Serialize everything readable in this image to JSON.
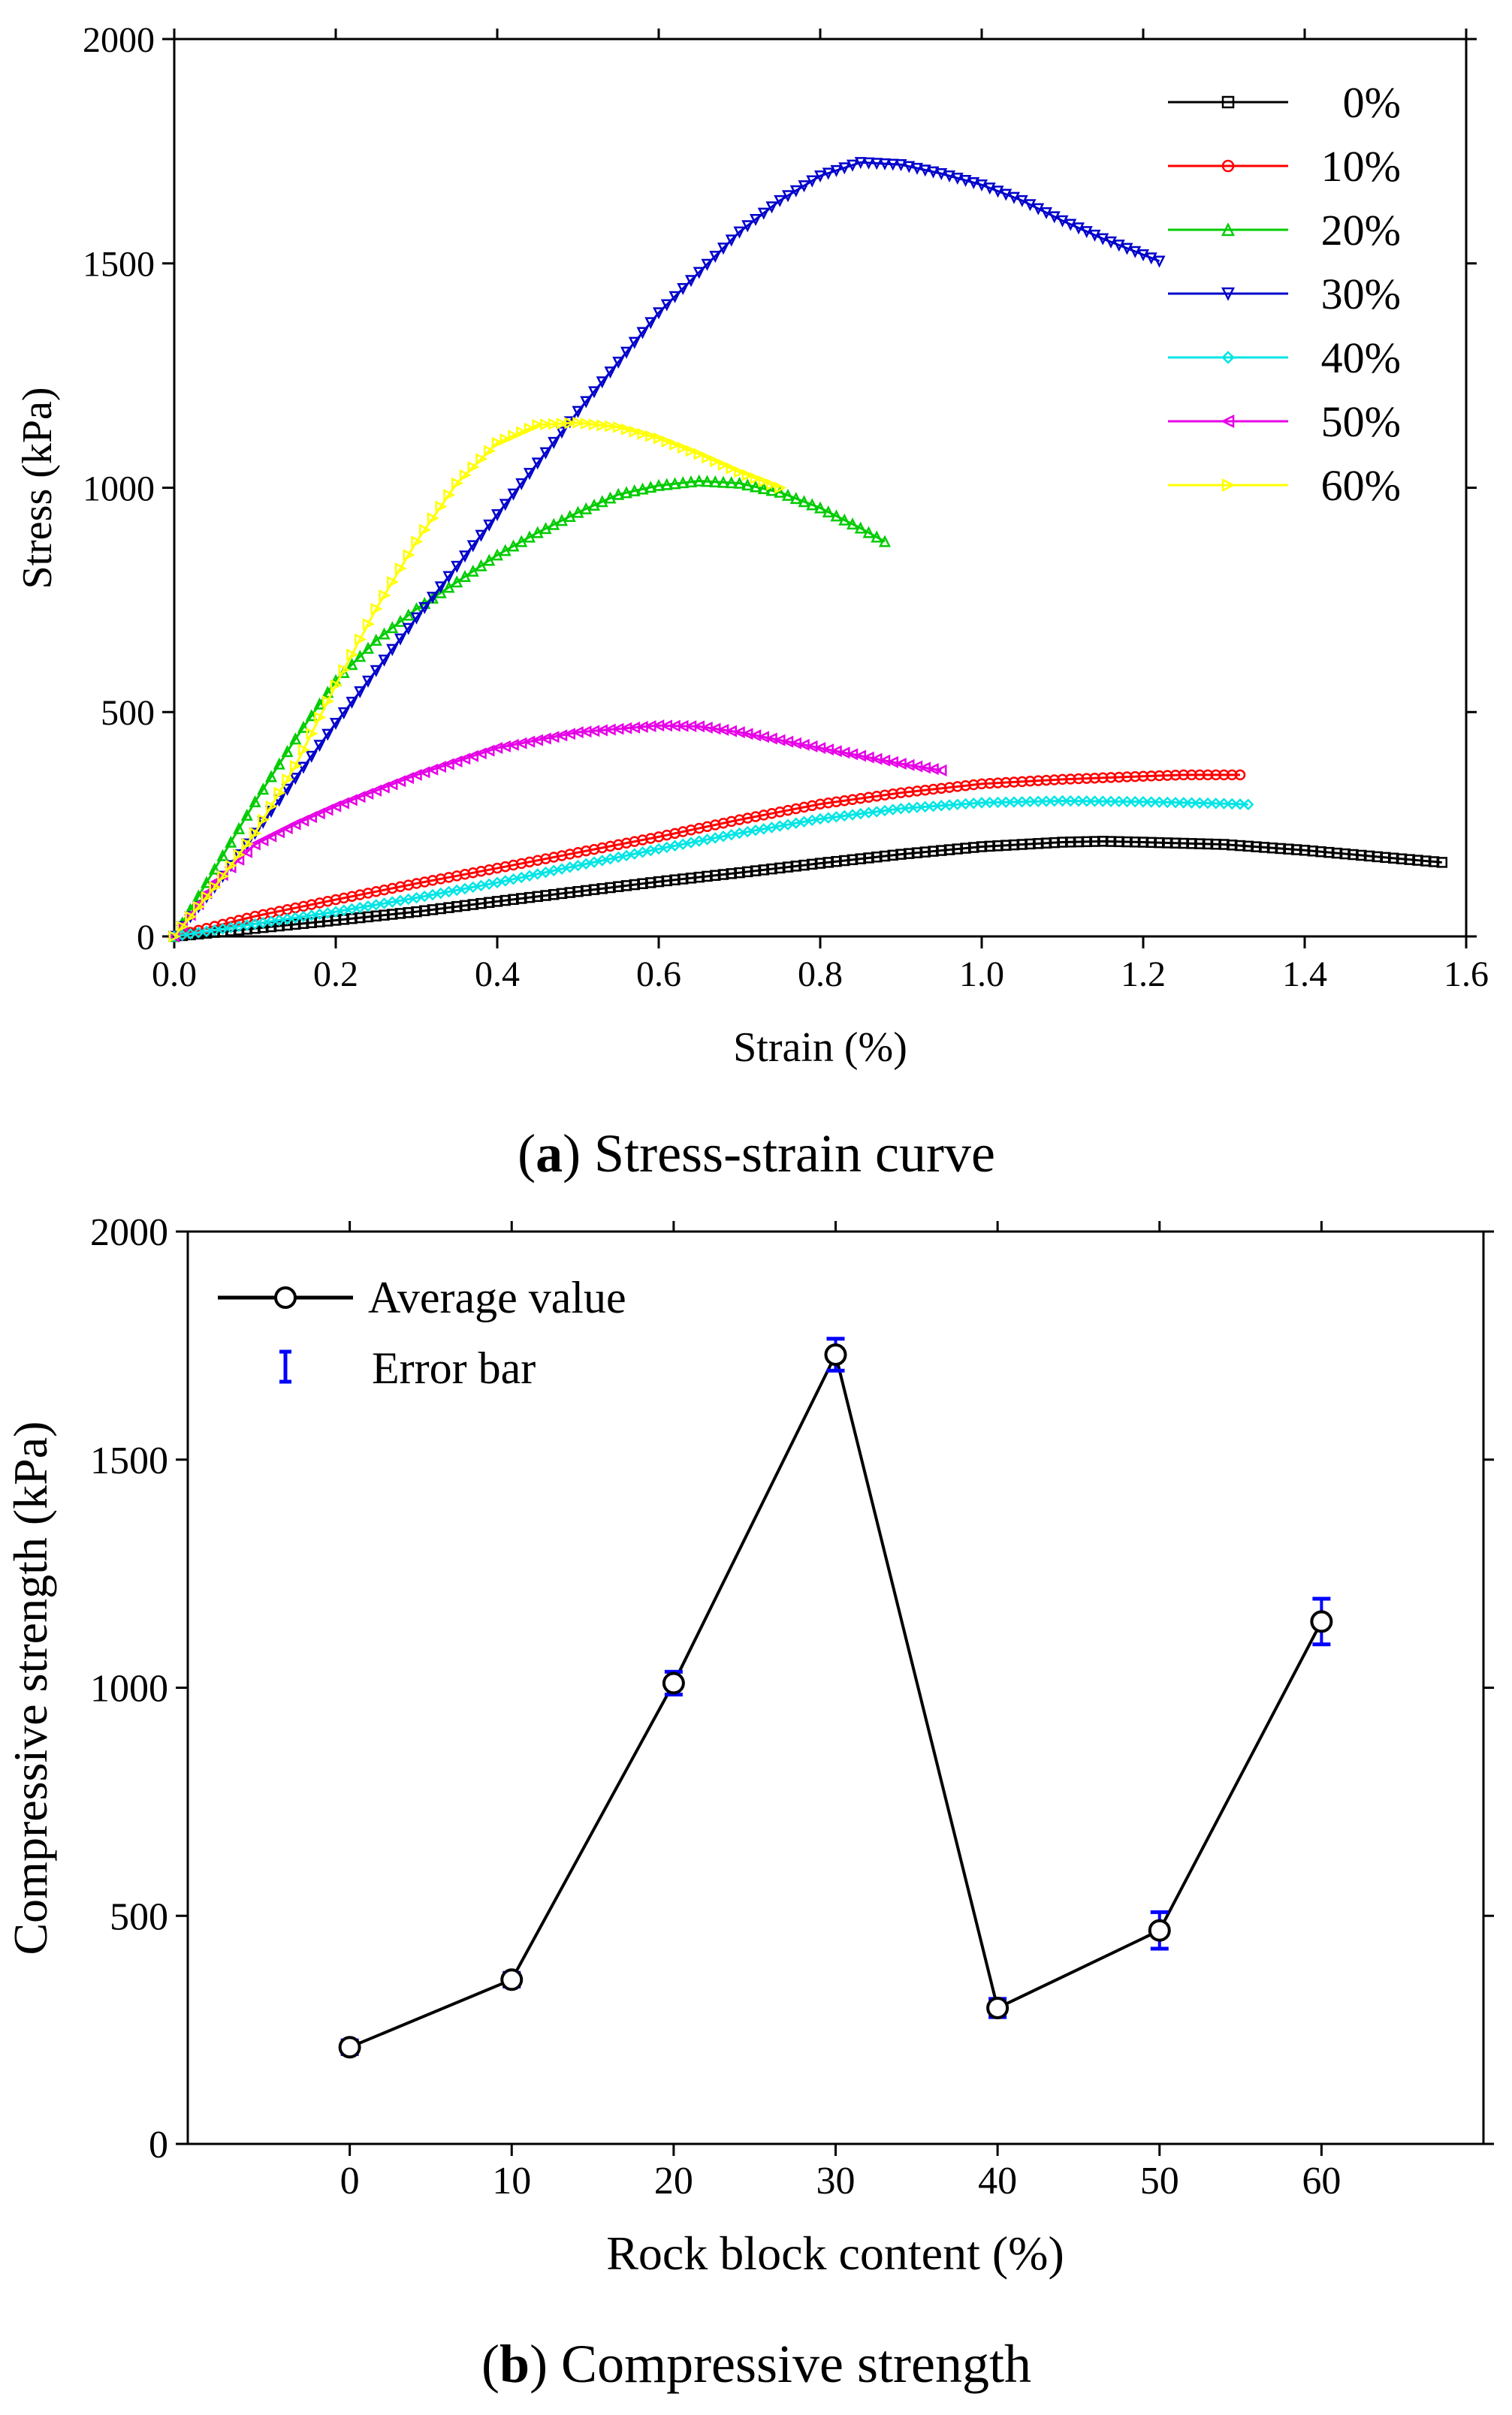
{
  "chart_data": [
    {
      "id": "a",
      "type": "line",
      "title": "Stress-strain curve",
      "caption_letter": "a",
      "xlabel": "Strain (%)",
      "ylabel": "Stress (kPa)",
      "xlim": [
        0,
        1.6
      ],
      "ylim": [
        0,
        2000
      ],
      "xticks": [
        0,
        0.2,
        0.4,
        0.6,
        0.8,
        1.0,
        1.2,
        1.4,
        1.6
      ],
      "xtick_labels": [
        "0.0",
        "0.2",
        "0.4",
        "0.6",
        "0.8",
        "1.0",
        "1.2",
        "1.4",
        "1.6"
      ],
      "yticks": [
        0,
        500,
        1000,
        1500,
        2000
      ],
      "ytick_labels": [
        "0",
        "500",
        "1000",
        "1500",
        "2000"
      ],
      "legend_position": "top-right",
      "series": [
        {
          "name": "0%",
          "color": "#000000",
          "marker": "square",
          "x": [
            0,
            0.1,
            0.2,
            0.3,
            0.4,
            0.5,
            0.6,
            0.7,
            0.8,
            0.9,
            1.0,
            1.1,
            1.15,
            1.2,
            1.3,
            1.4,
            1.5,
            1.57
          ],
          "y": [
            0,
            18,
            36,
            55,
            78,
            100,
            122,
            142,
            163,
            183,
            200,
            210,
            212,
            210,
            205,
            192,
            176,
            165
          ]
        },
        {
          "name": "10%",
          "color": "#ff0000",
          "marker": "circle",
          "x": [
            0,
            0.1,
            0.2,
            0.3,
            0.4,
            0.5,
            0.6,
            0.7,
            0.8,
            0.9,
            1.0,
            1.1,
            1.2,
            1.25,
            1.3,
            1.32
          ],
          "y": [
            0,
            45,
            82,
            118,
            152,
            187,
            222,
            260,
            295,
            320,
            340,
            350,
            357,
            360,
            360,
            360
          ]
        },
        {
          "name": "20%",
          "color": "#00cc00",
          "marker": "triangle-up",
          "x": [
            0,
            0.05,
            0.1,
            0.15,
            0.2,
            0.25,
            0.3,
            0.35,
            0.4,
            0.45,
            0.5,
            0.55,
            0.6,
            0.65,
            0.7,
            0.75,
            0.8,
            0.85,
            0.88
          ],
          "y": [
            0,
            150,
            300,
            440,
            570,
            660,
            730,
            790,
            850,
            900,
            945,
            985,
            1005,
            1015,
            1010,
            990,
            955,
            910,
            880
          ]
        },
        {
          "name": "30%",
          "color": "#0000cc",
          "marker": "triangle-down",
          "x": [
            0,
            0.05,
            0.1,
            0.2,
            0.3,
            0.4,
            0.5,
            0.6,
            0.7,
            0.75,
            0.8,
            0.85,
            0.9,
            0.95,
            1.0,
            1.05,
            1.1,
            1.15,
            1.22
          ],
          "y": [
            0,
            110,
            230,
            475,
            710,
            940,
            1170,
            1390,
            1570,
            1640,
            1695,
            1725,
            1720,
            1700,
            1675,
            1640,
            1595,
            1555,
            1505
          ]
        },
        {
          "name": "40%",
          "color": "#00e5e5",
          "marker": "diamond",
          "x": [
            0,
            0.1,
            0.2,
            0.3,
            0.4,
            0.5,
            0.6,
            0.7,
            0.8,
            0.9,
            1.0,
            1.1,
            1.2,
            1.3,
            1.33
          ],
          "y": [
            0,
            28,
            55,
            86,
            120,
            158,
            195,
            230,
            262,
            285,
            298,
            302,
            300,
            296,
            294
          ]
        },
        {
          "name": "50%",
          "color": "#e600e6",
          "marker": "triangle-left",
          "x": [
            0,
            0.05,
            0.1,
            0.15,
            0.2,
            0.3,
            0.4,
            0.5,
            0.6,
            0.65,
            0.7,
            0.8,
            0.9,
            0.95
          ],
          "y": [
            0,
            120,
            205,
            250,
            290,
            360,
            420,
            455,
            470,
            468,
            455,
            420,
            385,
            370
          ]
        },
        {
          "name": "60%",
          "color": "#ffff00",
          "marker": "triangle-right",
          "x": [
            0,
            0.05,
            0.1,
            0.15,
            0.2,
            0.25,
            0.3,
            0.35,
            0.4,
            0.45,
            0.5,
            0.55,
            0.6,
            0.65,
            0.7,
            0.75
          ],
          "y": [
            0,
            110,
            230,
            380,
            560,
            730,
            880,
            1010,
            1100,
            1140,
            1145,
            1135,
            1110,
            1075,
            1035,
            1000
          ]
        }
      ]
    },
    {
      "id": "b",
      "type": "line",
      "title": "Compressive strength",
      "caption_letter": "b",
      "xlabel": "Rock block content (%)",
      "ylabel": "Compressive strength (kPa)",
      "xlim": [
        -10,
        70
      ],
      "ylim": [
        0,
        2000
      ],
      "xticks": [
        0,
        10,
        20,
        30,
        40,
        50,
        60
      ],
      "xtick_labels": [
        "0",
        "10",
        "20",
        "30",
        "40",
        "50",
        "60"
      ],
      "yticks": [
        0,
        500,
        1000,
        1500,
        2000
      ],
      "ytick_labels": [
        "0",
        "500",
        "1000",
        "1500",
        "2000"
      ],
      "legend_position": "top-left",
      "legend": {
        "average": "Average value",
        "error": "Error bar"
      },
      "series": [
        {
          "name": "Average value",
          "color": "#000000",
          "errorbar_color": "#0000ff",
          "x": [
            0,
            10,
            20,
            30,
            40,
            50,
            60
          ],
          "y": [
            212,
            360,
            1010,
            1730,
            298,
            468,
            1145
          ],
          "err": [
            15,
            15,
            25,
            35,
            20,
            40,
            50
          ]
        }
      ]
    }
  ]
}
